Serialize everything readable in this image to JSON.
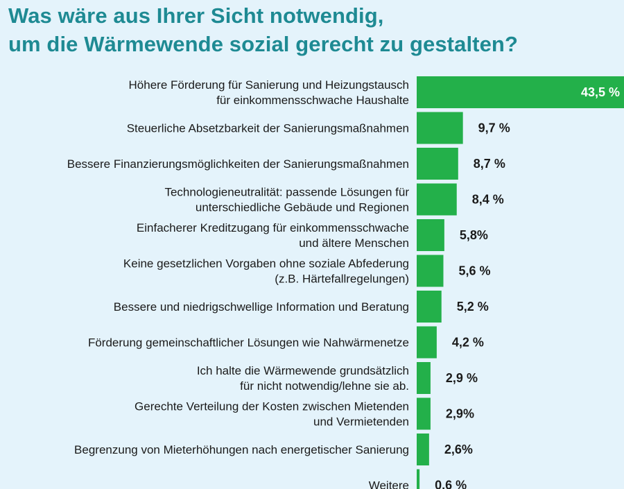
{
  "title": {
    "line1": "Was wäre aus Ihrer Sicht notwendig,",
    "line2": "um die Wärmewende sozial gerecht zu gestalten?"
  },
  "colors": {
    "background": "#e4f3fb",
    "title": "#1e8a93",
    "bar": "#23b04a",
    "text": "#1a1a1a",
    "value_inside": "#ffffff"
  },
  "chart_data": {
    "type": "bar",
    "orientation": "horizontal",
    "title": "Was wäre aus Ihrer Sicht notwendig, um die Wärmewende sozial gerecht zu gestalten?",
    "categories": [
      [
        "Höhere Förderung für Sanierung und Heizungstausch",
        "für einkommensschwache Haushalte"
      ],
      [
        "Steuerliche Absetzbarkeit der Sanierungsmaßnahmen"
      ],
      [
        "Bessere Finanzierungsmöglichkeiten der Sanierungsmaßnahmen"
      ],
      [
        "Technologieneutralität: passende Lösungen für",
        "unterschiedliche Gebäude und Regionen"
      ],
      [
        "Einfacherer Kreditzugang für einkommensschwache",
        "und ältere Menschen"
      ],
      [
        "Keine gesetzlichen Vorgaben ohne soziale Abfederung",
        "(z.B. Härtefallregelungen)"
      ],
      [
        "Bessere und niedrigschwellige Information und Beratung"
      ],
      [
        "Förderung gemeinschaftlicher Lösungen wie Nahwärmenetze"
      ],
      [
        "Ich halte die Wärmewende grundsätzlich",
        "für nicht notwendig/lehne sie ab."
      ],
      [
        "Gerechte Verteilung der Kosten zwischen Mietenden",
        "und Vermietenden"
      ],
      [
        "Begrenzung von Mieterhöhungen nach energetischer Sanierung"
      ],
      [
        "Weitere"
      ]
    ],
    "values": [
      43.5,
      9.7,
      8.7,
      8.4,
      5.8,
      5.6,
      5.2,
      4.2,
      2.9,
      2.9,
      2.6,
      0.6
    ],
    "value_labels": [
      "43,5 %",
      "9,7 %",
      "8,7 %",
      "8,4 %",
      "5,8%",
      "5,6 %",
      "5,2 %",
      "4,2 %",
      "2,9 %",
      "2,9%",
      "2,6%",
      "0,6 %"
    ],
    "unit": "%",
    "xlabel": "",
    "ylabel": "",
    "grid": false,
    "legend": "none"
  }
}
